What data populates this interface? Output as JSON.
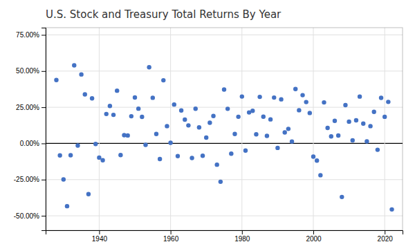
{
  "chart_data": {
    "type": "scatter",
    "title": "U.S. Stock and Treasury Total Returns By Year",
    "color": "#4472C4",
    "grid": true,
    "x": [
      1928,
      1929,
      1930,
      1931,
      1932,
      1933,
      1934,
      1935,
      1936,
      1937,
      1938,
      1939,
      1940,
      1941,
      1942,
      1943,
      1944,
      1945,
      1946,
      1947,
      1948,
      1949,
      1950,
      1951,
      1952,
      1953,
      1954,
      1955,
      1956,
      1957,
      1958,
      1959,
      1960,
      1961,
      1962,
      1963,
      1964,
      1965,
      1966,
      1967,
      1968,
      1969,
      1970,
      1971,
      1972,
      1973,
      1974,
      1975,
      1976,
      1977,
      1978,
      1979,
      1980,
      1981,
      1982,
      1983,
      1984,
      1985,
      1986,
      1987,
      1988,
      1989,
      1990,
      1991,
      1992,
      1993,
      1994,
      1995,
      1996,
      1997,
      1998,
      1999,
      2000,
      2001,
      2002,
      2003,
      2004,
      2005,
      2006,
      2007,
      2008,
      2009,
      2010,
      2011,
      2012,
      2013,
      2014,
      2015,
      2016,
      2017,
      2018,
      2019,
      2020,
      2021,
      2022
    ],
    "values": [
      0.4381,
      -0.083,
      -0.249,
      -0.4334,
      -0.0819,
      0.5399,
      -0.0144,
      0.4767,
      0.3392,
      -0.3503,
      0.3112,
      -0.0041,
      -0.0978,
      -0.1159,
      0.2034,
      0.259,
      0.1975,
      0.3644,
      -0.0807,
      0.0571,
      0.055,
      0.1879,
      0.3171,
      0.2402,
      0.1837,
      -0.0099,
      0.5262,
      0.3156,
      0.0656,
      -0.1078,
      0.4364,
      0.1196,
      0.0047,
      0.2689,
      -0.0873,
      0.228,
      0.1648,
      0.1245,
      -0.1006,
      0.2398,
      0.1106,
      -0.085,
      0.0401,
      0.1431,
      0.1898,
      -0.1469,
      -0.2647,
      0.372,
      0.2393,
      -0.0711,
      0.0656,
      0.1844,
      0.3242,
      -0.0491,
      0.2141,
      0.2251,
      0.0627,
      0.3216,
      0.1847,
      0.0523,
      0.1661,
      0.3169,
      -0.031,
      0.3047,
      0.0762,
      0.1008,
      0.0132,
      0.3758,
      0.2296,
      0.3336,
      0.2858,
      0.2104,
      -0.091,
      -0.1189,
      -0.2197,
      0.2836,
      0.1074,
      0.0489,
      0.1561,
      0.0548,
      -0.37,
      0.2646,
      0.1506,
      0.0211,
      0.16,
      0.3239,
      0.1369,
      0.0138,
      0.1196,
      0.2183,
      -0.0438,
      0.3149,
      0.184,
      0.2871,
      -0.456
    ],
    "xlim": [
      1925,
      2025
    ],
    "ylim": [
      -0.6,
      0.8
    ],
    "xticks": [
      1940,
      1960,
      1980,
      2000,
      2020
    ],
    "yticks": [
      {
        "value": -0.5,
        "label": "-50.00%"
      },
      {
        "value": -0.25,
        "label": "-25.00%"
      },
      {
        "value": 0.0,
        "label": "0.00%"
      },
      {
        "value": 0.25,
        "label": "25.00%"
      },
      {
        "value": 0.5,
        "label": "50.00%"
      },
      {
        "value": 0.75,
        "label": "75.00%"
      }
    ]
  }
}
